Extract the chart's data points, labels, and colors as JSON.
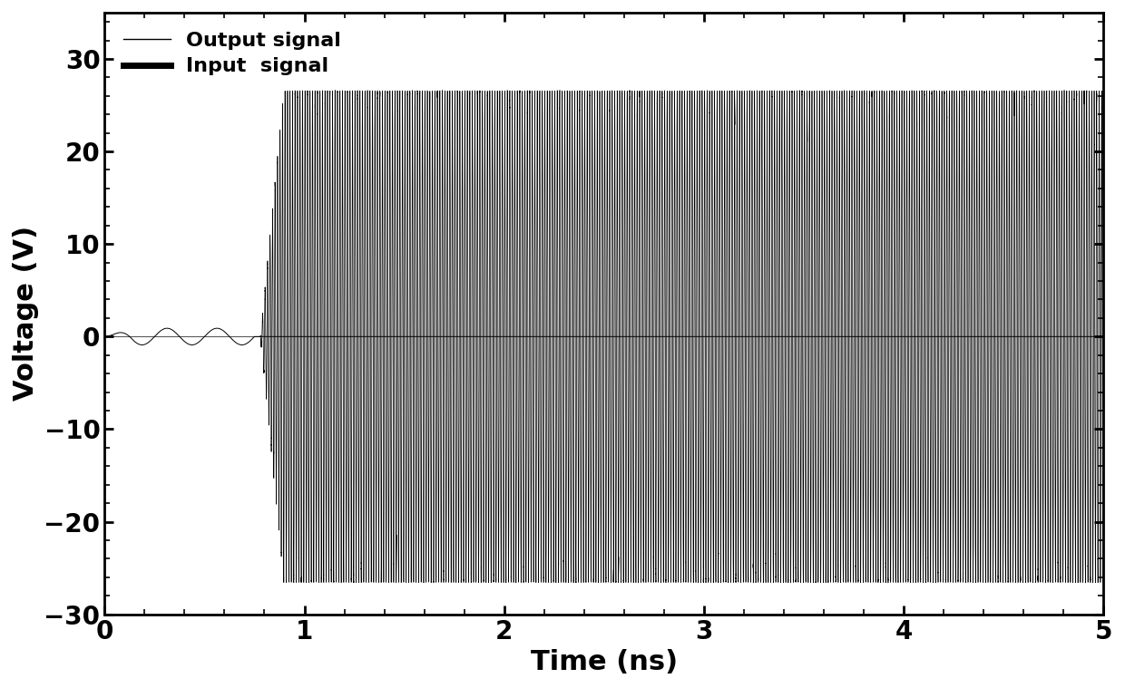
{
  "title": "",
  "xlabel": "Time (ns)",
  "ylabel": "Voltage (V)",
  "xlim": [
    0,
    5
  ],
  "ylim": [
    -30,
    35
  ],
  "yticks": [
    -30,
    -20,
    -10,
    0,
    10,
    20,
    30
  ],
  "xticks": [
    0,
    1,
    2,
    3,
    4,
    5
  ],
  "input_color": "#000000",
  "output_color": "#000000",
  "input_linewidth": 0.7,
  "output_linewidth": 0.5,
  "legend_input": "Input  signal",
  "legend_output": "Output signal",
  "background_color": "#ffffff",
  "input_amplitude": 0.9,
  "input_freq_ghz": 4.0,
  "input_end": 0.75,
  "output_amplitude_steady": 26.5,
  "output_freq_ghz": 80.0,
  "output_start": 0.78,
  "output_ramp_duration": 0.35,
  "total_time": 5.0,
  "n_points": 500000,
  "xlabel_fontsize": 22,
  "ylabel_fontsize": 22,
  "tick_fontsize": 20,
  "legend_fontsize": 15,
  "axis_linewidth": 2.0,
  "figsize": [
    12.4,
    7.59
  ],
  "dpi": 100
}
